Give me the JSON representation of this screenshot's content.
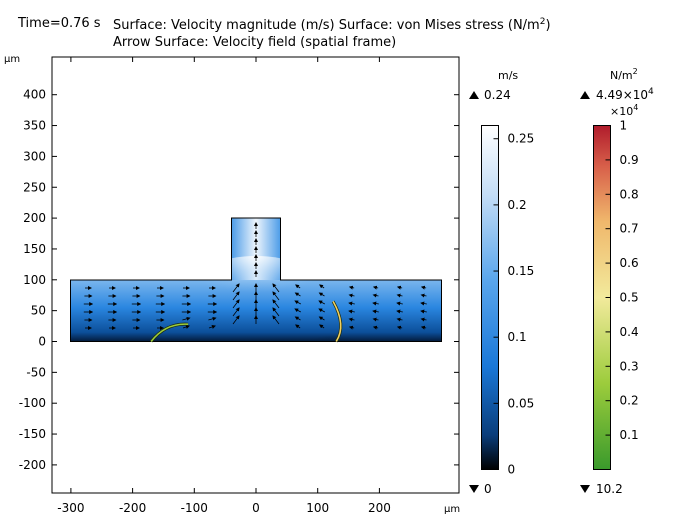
{
  "header": {
    "time_label": "Time=0.76 s",
    "title_line1": "Surface: Velocity magnitude (m/s)  Surface: von Mises stress (N/m",
    "title_line1_sup": "2",
    "title_line1_end": ")",
    "title_line2": "Arrow Surface: Velocity field (spatial frame)"
  },
  "chart_data": {
    "type": "heatmap",
    "xunit": "µm",
    "yunit": "µm",
    "xlim": [
      -330,
      330
    ],
    "ylim": [
      -250,
      460
    ],
    "xticks": [
      -300,
      -200,
      -100,
      0,
      100,
      200
    ],
    "yticks": [
      -200,
      -150,
      -100,
      -50,
      0,
      50,
      100,
      150,
      200,
      250,
      300,
      350,
      400
    ],
    "geometry": {
      "channel": {
        "x": [
          -300,
          300
        ],
        "y": [
          0,
          100
        ]
      },
      "outlet": {
        "x": [
          -40,
          40
        ],
        "y": [
          100,
          200
        ]
      }
    },
    "flaps": [
      {
        "base": [
          -170,
          0
        ],
        "tip": [
          -110,
          28
        ],
        "color": "#9ccc3c"
      },
      {
        "base": [
          130,
          0
        ],
        "tip": [
          125,
          65
        ],
        "color": "#f0d060"
      }
    ],
    "colorbars": [
      {
        "name": "velocity",
        "unit": "m/s",
        "max_label": "0.24",
        "min_label": "0",
        "ticks": [
          "0.25",
          "0.2",
          "0.15",
          "0.1",
          "0.05",
          "0"
        ],
        "tick_values": [
          0.25,
          0.2,
          0.15,
          0.1,
          0.05,
          0
        ],
        "range": [
          0,
          0.26
        ],
        "colors": [
          "#000000",
          "#0a3d7a",
          "#1a78d8",
          "#5aa6ec",
          "#c4ddf6",
          "#ffffff"
        ]
      },
      {
        "name": "stress",
        "unit": "N/m",
        "unit_sup": "2",
        "max_label_base": "4.49×10",
        "max_label_exp": "4",
        "multiplier_base": "×10",
        "multiplier_exp": "4",
        "min_label": "10.2",
        "ticks": [
          "1",
          "0.9",
          "0.8",
          "0.7",
          "0.6",
          "0.5",
          "0.4",
          "0.3",
          "0.2",
          "0.1"
        ],
        "tick_values": [
          1,
          0.9,
          0.8,
          0.7,
          0.6,
          0.5,
          0.4,
          0.3,
          0.2,
          0.1
        ],
        "range": [
          0,
          1
        ],
        "colors": [
          "#3a9a2c",
          "#9ccc3c",
          "#f2ea9c",
          "#f0b86c",
          "#d8604a",
          "#b01c2c"
        ]
      }
    ]
  }
}
